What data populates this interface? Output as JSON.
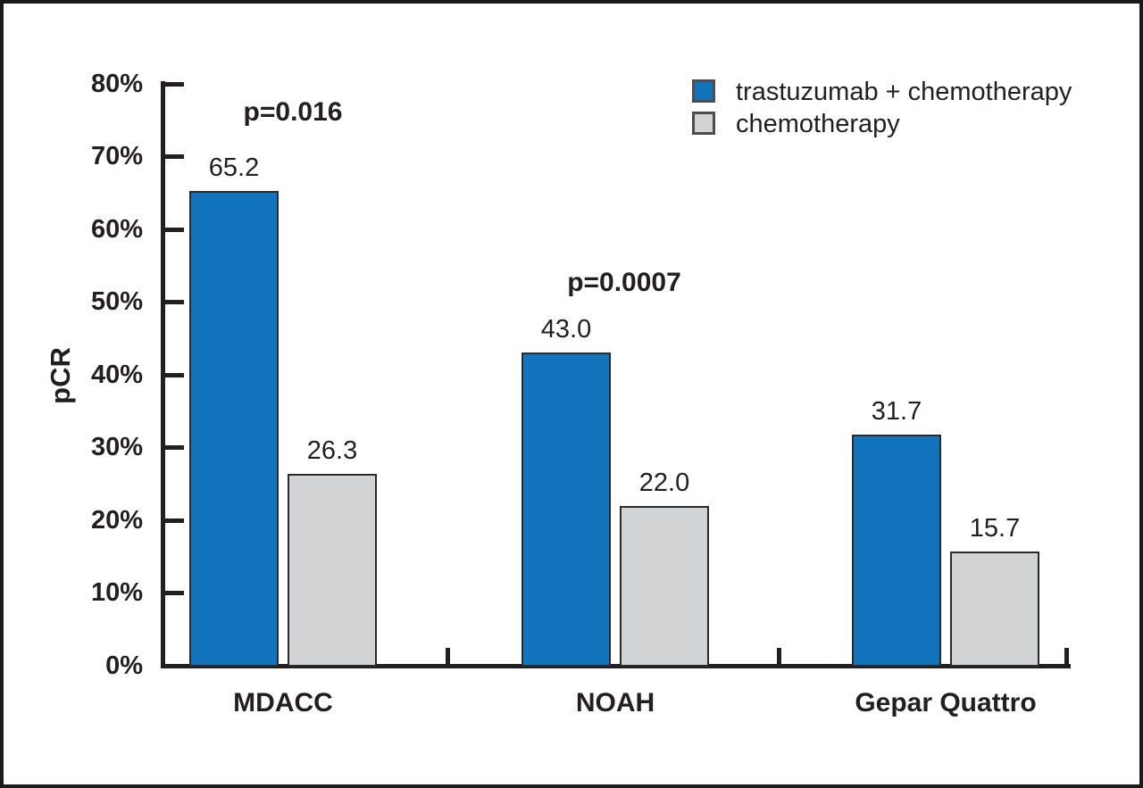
{
  "figure": {
    "background_color": "#ffffff",
    "frame_color": "#1b1b1b",
    "ink_color": "#231F20"
  },
  "chart_data": {
    "type": "bar",
    "title": "",
    "xlabel": "",
    "ylabel": "pCR",
    "ylim": [
      0,
      80
    ],
    "ytick_interval": 10,
    "ytick_suffix": "%",
    "ytick_labels": [
      "0%",
      "10%",
      "20%",
      "30%",
      "40%",
      "50%",
      "60%",
      "70%",
      "80%"
    ],
    "grid": false,
    "legend_position": "top-right",
    "categories": [
      "MDACC",
      "NOAH",
      "Gepar Quattro"
    ],
    "series": [
      {
        "name": "trastuzumab + chemotherapy",
        "color": "#1274BC",
        "values": [
          65.2,
          43.0,
          31.7
        ],
        "labels": [
          "65.2",
          "43.0",
          "31.7"
        ]
      },
      {
        "name": "chemotherapy",
        "color": "#D1D3D4",
        "values": [
          26.3,
          22.0,
          15.7
        ],
        "labels": [
          "26.3",
          "22.0",
          "15.7"
        ]
      }
    ],
    "annotations": [
      {
        "text": "p=0.016",
        "group": "MDACC"
      },
      {
        "text": "p=0.0007",
        "group": "NOAH"
      }
    ]
  }
}
